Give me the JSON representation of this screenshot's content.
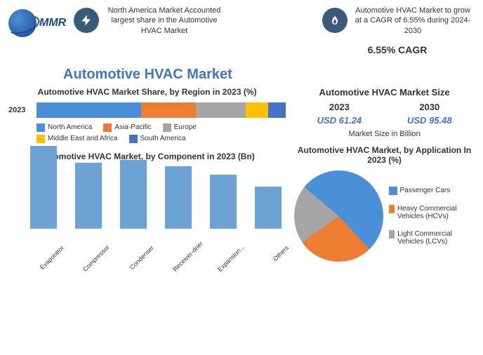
{
  "header": {
    "logo_text": "MMR",
    "info1": {
      "icon": "bolt-icon",
      "text": "North America Market Accounted largest share in the Automotive HVAC Market"
    },
    "info2": {
      "icon": "flame-icon",
      "text": "Automotive HVAC Market to grow at a CAGR of 6.55% during 2024-2030",
      "cagr": "6.55% CAGR"
    }
  },
  "main_title": "Automotive HVAC Market",
  "region_chart": {
    "title": "Automotive HVAC Market Share, by Region in 2023 (%)",
    "year_label": "2023",
    "segments": [
      {
        "label": "North America",
        "value": 42,
        "color": "#4a90d9"
      },
      {
        "label": "Asia-Pacific",
        "value": 22,
        "color": "#ed7d31"
      },
      {
        "label": "Europe",
        "value": 20,
        "color": "#a5a5a5"
      },
      {
        "label": "Middle East and Africa",
        "value": 9,
        "color": "#ffc000"
      },
      {
        "label": "South America",
        "value": 7,
        "color": "#4472c4"
      }
    ]
  },
  "component_chart": {
    "title": "Automotive HVAC Market, by Component in 2023 (Bn)",
    "bar_color": "#6ba3d6",
    "y_max": 100,
    "items": [
      {
        "label": "Evaporator",
        "value": 98
      },
      {
        "label": "Compressor",
        "value": 78
      },
      {
        "label": "Condenser",
        "value": 82
      },
      {
        "label": "Receiver-drier",
        "value": 74
      },
      {
        "label": "Expansion...",
        "value": 64
      },
      {
        "label": "Others",
        "value": 50
      }
    ]
  },
  "size_block": {
    "title": "Automotive HVAC Market Size",
    "year1": "2023",
    "year2": "2030",
    "val1": "USD 61.24",
    "val2": "USD 95.48",
    "note": "Market Size in Billion"
  },
  "application_chart": {
    "title": "Automotive HVAC Market, by Application In 2023 (%)",
    "slices": [
      {
        "label": "Passenger Cars",
        "value": 52,
        "color": "#4a90d9"
      },
      {
        "label": "Heavy Commercial Vehicles (HCVs)",
        "value": 27,
        "color": "#ed7d31"
      },
      {
        "label": "Light Commercial Vehicles (LCVs)",
        "value": 21,
        "color": "#a5a5a5"
      }
    ]
  }
}
